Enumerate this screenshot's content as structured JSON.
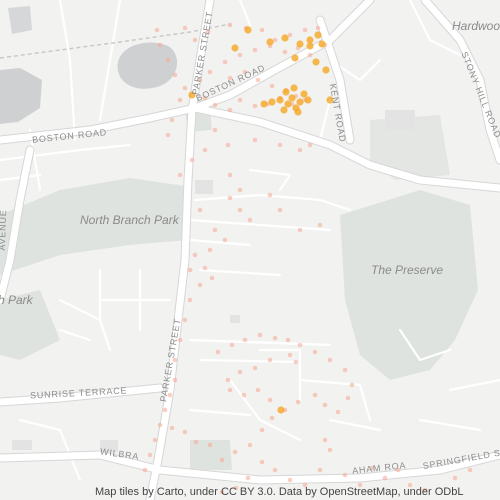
{
  "map": {
    "labels": {
      "north_branch_park": "North Branch Park",
      "the_preserve": "The Preserve",
      "hardwood": "Hardwoo",
      "park_left": "h Park",
      "boston_road_west": "BOSTON ROAD",
      "boston_road_east": "BOSTON ROAD",
      "parker_street_north": "PARKER STREET",
      "parker_street_south": "PARKER STREET",
      "kent_road": "KENT ROAD",
      "stony_hill_road": "STONY HILL ROAD",
      "sunrise_terrace": "SUNRISE TERRACE",
      "avenue_left": "AVENUE",
      "wilbraham_road_left": "WILBRA",
      "wilbraham_road_right": "AHAM ROA",
      "springfield_street": "SPRINGFIELD STREE"
    },
    "attribution": "Map tiles by Carto, under CC BY 3.0. Data by OpenStreetMap, under ODbL",
    "colors": {
      "background": "#f2f2f1",
      "road": "#ffffff",
      "road_casing": "#d9d9d9",
      "green": "#dfe3df",
      "water": "#cfd0d2",
      "dot_light": "#f7a58f",
      "dot_strong": "#f5a623"
    }
  }
}
